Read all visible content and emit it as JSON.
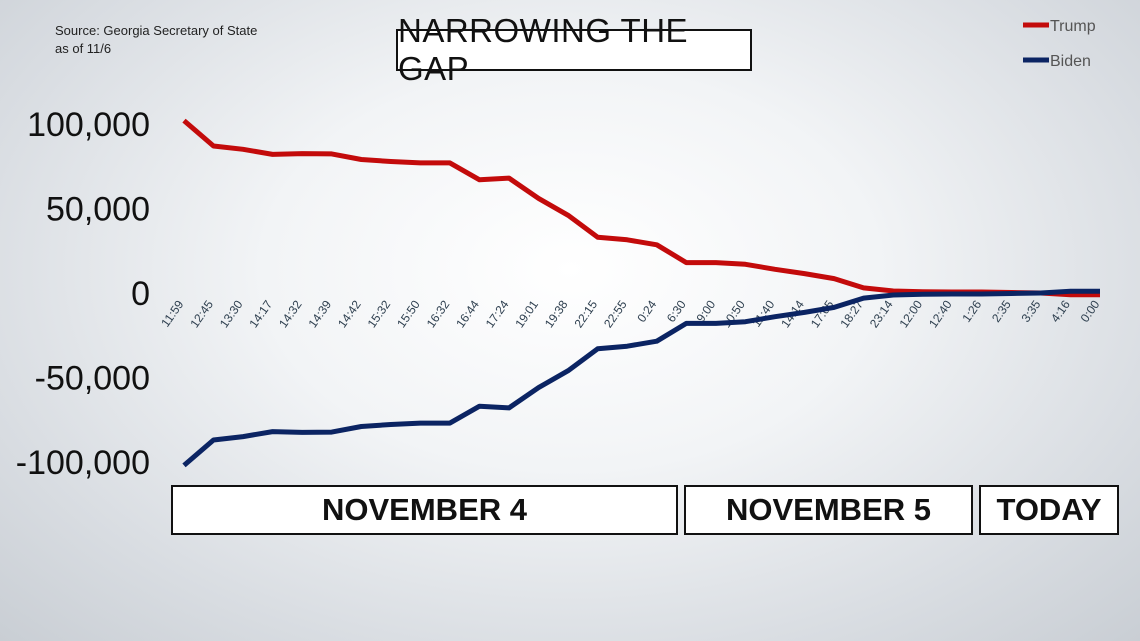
{
  "source": {
    "line1": "Source: Georgia Secretary of State",
    "line2": "as of 11/6"
  },
  "title": "NARROWING THE GAP",
  "date_labels": [
    "NOVEMBER 4",
    "NOVEMBER 5",
    "TODAY"
  ],
  "colors": {
    "trump": "#c30b0b",
    "biden": "#0b2463"
  },
  "chart_data": {
    "type": "line",
    "title": "NARROWING THE GAP",
    "xlabel": "",
    "ylabel": "",
    "ylim": [
      -100000,
      100000
    ],
    "yticks": [
      100000,
      50000,
      0,
      -50000,
      -100000
    ],
    "ytick_labels": [
      "100,000",
      "50,000",
      "0",
      "-50,000",
      "-100,000"
    ],
    "grid": false,
    "legend": "top-right",
    "categories": [
      "11:59",
      "12:45",
      "13:30",
      "14:17",
      "14:32",
      "14:39",
      "14:42",
      "15:32",
      "15:50",
      "16:32",
      "16:44",
      "17:24",
      "19:01",
      "19:38",
      "22:15",
      "22:55",
      "0:24",
      "6:30",
      "9:00",
      "10:50",
      "11:40",
      "14:14",
      "17:05",
      "18:27",
      "23:14",
      "12:00",
      "12:40",
      "1:26",
      "2:35",
      "3:35",
      "4:16",
      "0:00"
    ],
    "series": [
      {
        "name": "Trump",
        "color": "#c30b0b",
        "values": [
          102000,
          87000,
          85000,
          82000,
          82500,
          82300,
          79000,
          77800,
          77000,
          77000,
          67000,
          68000,
          56000,
          46000,
          33000,
          31500,
          28500,
          18000,
          18000,
          17000,
          14000,
          11500,
          8500,
          3000,
          1200,
          700,
          600,
          600,
          300,
          0,
          -1000,
          -1000
        ]
      },
      {
        "name": "Biden",
        "color": "#0b2463",
        "values": [
          -102000,
          -87000,
          -85000,
          -82000,
          -82500,
          -82300,
          -79000,
          -77800,
          -77000,
          -77000,
          -67000,
          -68000,
          -56000,
          -46000,
          -33000,
          -31500,
          -28500,
          -18000,
          -18000,
          -17000,
          -14000,
          -11500,
          -8500,
          -3000,
          -1200,
          -700,
          -600,
          -600,
          -300,
          0,
          1000,
          1000
        ]
      }
    ]
  }
}
